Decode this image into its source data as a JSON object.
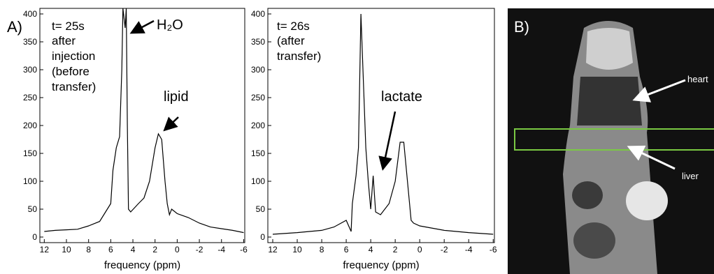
{
  "panel_labels": [
    "A)",
    "B)"
  ],
  "image": {
    "labels": [
      "heart",
      "liver"
    ]
  },
  "chart_data": [
    {
      "type": "line",
      "xlabel": "frequency (ppm)",
      "x": [
        12,
        11,
        10,
        9,
        8,
        7,
        6,
        5.8,
        5.5,
        5.2,
        5,
        4.9,
        4.7,
        4.6,
        4.5,
        4.4,
        4.2,
        3.5,
        3,
        2.5,
        2,
        1.7,
        1.4,
        1.1,
        0.9,
        0.7,
        0.5,
        0,
        -1,
        -2,
        -3,
        -4,
        -5,
        -6
      ],
      "values": [
        10,
        12,
        13,
        14,
        20,
        28,
        60,
        120,
        160,
        180,
        300,
        410,
        375,
        410,
        200,
        50,
        45,
        60,
        70,
        100,
        160,
        185,
        175,
        100,
        60,
        40,
        50,
        42,
        35,
        25,
        18,
        15,
        12,
        8
      ],
      "color": "#000000",
      "xlim": [
        12.4,
        -6.1
      ],
      "xticks": [
        12,
        10,
        8,
        6,
        4,
        2,
        0,
        -2,
        -4,
        -6
      ],
      "ylim": [
        -10,
        410
      ],
      "yticks": [
        0,
        50,
        100,
        150,
        200,
        250,
        300,
        350,
        400
      ],
      "annotations": [
        "t= 25s",
        "after",
        "injection",
        "(before",
        "transfer)",
        "H₂O",
        "lipid"
      ]
    },
    {
      "type": "line",
      "xlabel": "frequency (ppm)",
      "x": [
        12,
        10,
        8,
        7,
        6,
        5.6,
        5.5,
        5.2,
        5,
        4.8,
        4.6,
        4.4,
        4.2,
        4,
        3.8,
        3.6,
        3.2,
        2.5,
        2,
        1.6,
        1.3,
        1,
        0.7,
        0.5,
        0,
        -2,
        -4,
        -6
      ],
      "values": [
        5,
        8,
        12,
        18,
        30,
        10,
        60,
        110,
        160,
        400,
        280,
        160,
        100,
        50,
        110,
        45,
        40,
        60,
        100,
        170,
        170,
        100,
        30,
        25,
        20,
        12,
        8,
        5
      ],
      "color": "#000000",
      "xlim": [
        12.4,
        -6.1
      ],
      "xticks": [
        12,
        10,
        8,
        6,
        4,
        2,
        0,
        -2,
        -4,
        -6
      ],
      "ylim": [
        -10,
        410
      ],
      "yticks": [
        0,
        50,
        100,
        150,
        200,
        250,
        300,
        350,
        400
      ],
      "annotations": [
        "t= 26s",
        "(after",
        "transfer)",
        "lactate"
      ]
    }
  ]
}
